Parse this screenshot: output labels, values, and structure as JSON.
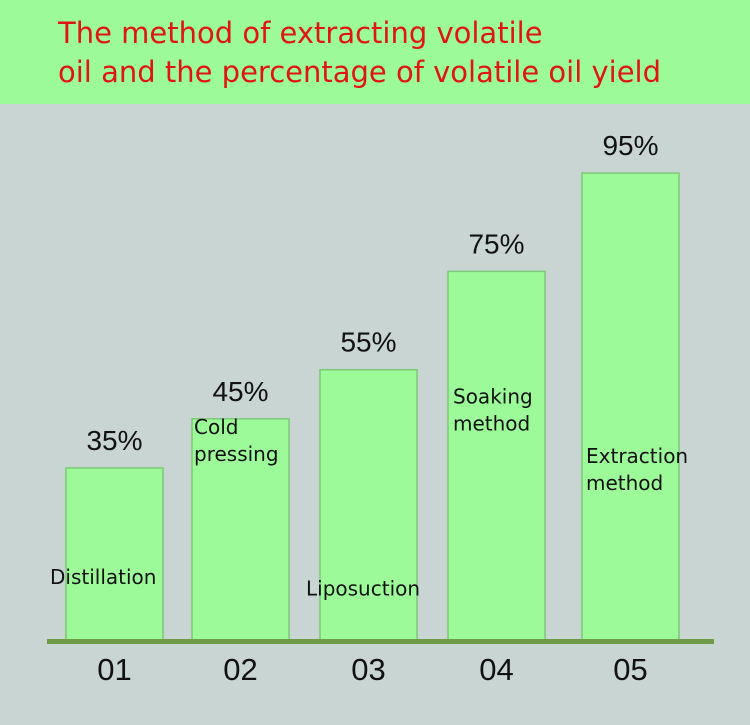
{
  "title_lines": [
    "The method of extracting volatile",
    "oil and the percentage of volatile oil yield"
  ],
  "colors": {
    "background": "#c9d5d3",
    "banner": "#9cfb98",
    "title": "#e01612",
    "bar": "#9cfb98",
    "bar_stroke": "#7cc878",
    "baseline": "#6f9a46"
  },
  "chart_data": {
    "type": "bar",
    "title": "The method of extracting volatile oil and the percentage of volatile oil yield",
    "categories": [
      "01",
      "02",
      "03",
      "04",
      "05"
    ],
    "values": [
      35,
      45,
      55,
      75,
      95
    ],
    "value_labels": [
      "35%",
      "45%",
      "55%",
      "75%",
      "95%"
    ],
    "bar_labels": [
      [
        "Distillation"
      ],
      [
        "Cold",
        "pressing"
      ],
      [
        "Liposuction"
      ],
      [
        "Soaking",
        " method"
      ],
      [
        "Extraction",
        "method"
      ]
    ],
    "xlabel": "",
    "ylabel": "",
    "grid": false
  }
}
